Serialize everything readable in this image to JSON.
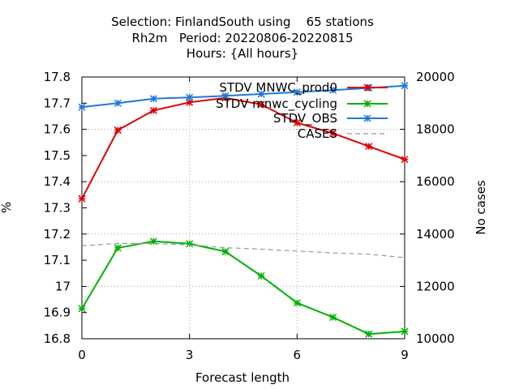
{
  "chart_data": {
    "type": "line",
    "title_lines": [
      "Selection: FinlandSouth using    65 stations",
      "Rh2m   Period: 20220806-20220815",
      "Hours: {All hours}"
    ],
    "xlabel": "Forecast length",
    "ylabel": "%",
    "y2label": "No cases",
    "x": [
      0,
      1,
      2,
      3,
      4,
      5,
      6,
      7,
      8,
      9
    ],
    "xlim": [
      0,
      9
    ],
    "ylim": [
      16.8,
      17.8
    ],
    "y2lim": [
      10000,
      20000
    ],
    "xticks": [
      "0",
      "3",
      "6",
      "9"
    ],
    "yticks": [
      "16.8",
      "16.9",
      "17",
      "17.1",
      "17.2",
      "17.3",
      "17.4",
      "17.5",
      "17.6",
      "17.7",
      "17.8"
    ],
    "y2ticks": [
      "10000",
      "12000",
      "14000",
      "16000",
      "18000",
      "20000"
    ],
    "grid": true,
    "legend_position": "top-right",
    "series": [
      {
        "name": "STDV MNWC_prod0",
        "axis": "y",
        "color": "#dd0000",
        "values": [
          17.335,
          17.597,
          17.672,
          17.703,
          17.72,
          17.695,
          17.625,
          17.585,
          17.535,
          17.485
        ]
      },
      {
        "name": "STDV mnwc_cycling",
        "axis": "y",
        "color": "#00b000",
        "values": [
          16.915,
          17.147,
          17.172,
          17.163,
          17.133,
          17.04,
          16.937,
          16.882,
          16.818,
          16.828
        ]
      },
      {
        "name": "STDV_OBS",
        "axis": "y",
        "color": "#1e78dc",
        "values": [
          17.685,
          17.7,
          17.717,
          17.722,
          17.728,
          17.735,
          17.742,
          17.75,
          17.758,
          17.767
        ]
      },
      {
        "name": "CASES",
        "axis": "y2",
        "color": "#999999",
        "values": [
          13550,
          13640,
          13640,
          13580,
          13480,
          13420,
          13350,
          13280,
          13230,
          13100
        ]
      }
    ]
  }
}
